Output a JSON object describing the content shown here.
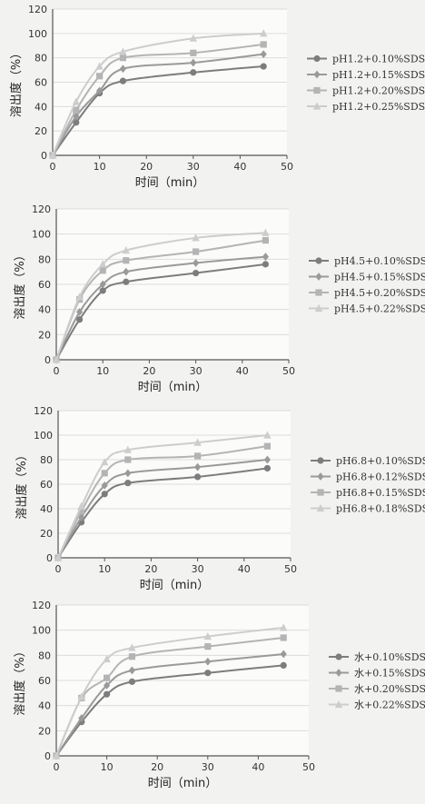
{
  "colors": {
    "series1": "#7d7d7d",
    "series2": "#9a9a9a",
    "series3": "#b4b4b4",
    "series4": "#cdcdcd",
    "axis": "#555555",
    "grid": "#dcdcdc",
    "panel_bg": "#fbfbfa",
    "page_bg": "#f2f2f0"
  },
  "chart_data": [
    {
      "type": "line",
      "xlabel": "时间（min）",
      "ylabel": "溶出度（%）",
      "xlim": [
        0,
        50
      ],
      "ylim": [
        0,
        120
      ],
      "xticks": [
        "0",
        "10",
        "20",
        "30",
        "40",
        "50"
      ],
      "yticks": [
        "0",
        "20",
        "40",
        "60",
        "80",
        "100",
        "120"
      ],
      "grid": true,
      "legend": "right",
      "x": [
        0,
        5,
        10,
        15,
        30,
        45
      ],
      "series": [
        {
          "name": "pH1.2+0.10%SDS",
          "marker": "circle",
          "values": [
            0,
            27,
            51,
            61,
            68,
            73
          ]
        },
        {
          "name": "pH1.2+0.15%SDS",
          "marker": "diamond",
          "values": [
            0,
            32,
            53,
            71,
            76,
            83
          ]
        },
        {
          "name": "pH1.2+0.20%SDS",
          "marker": "square",
          "values": [
            0,
            37,
            65,
            80,
            84,
            91
          ]
        },
        {
          "name": "pH1.2+0.25%SDS",
          "marker": "triangle",
          "values": [
            0,
            44,
            73,
            85,
            96,
            100
          ]
        }
      ]
    },
    {
      "type": "line",
      "xlabel": "时间（min）",
      "ylabel": "溶出度（%）",
      "xlim": [
        0,
        50
      ],
      "ylim": [
        0,
        120
      ],
      "xticks": [
        "0",
        "10",
        "20",
        "30",
        "40",
        "50"
      ],
      "yticks": [
        "0",
        "20",
        "40",
        "60",
        "80",
        "100",
        "120"
      ],
      "grid": true,
      "legend": "right",
      "x": [
        0,
        5,
        10,
        15,
        30,
        45
      ],
      "series": [
        {
          "name": "pH4.5+0.10%SDS",
          "marker": "circle",
          "values": [
            0,
            32,
            55,
            62,
            69,
            76
          ]
        },
        {
          "name": "pH4.5+0.15%SDS",
          "marker": "diamond",
          "values": [
            0,
            38,
            60,
            70,
            77,
            82
          ]
        },
        {
          "name": "pH4.5+0.20%SDS",
          "marker": "square",
          "values": [
            0,
            48,
            71,
            79,
            86,
            95
          ]
        },
        {
          "name": "pH4.5+0.22%SDS",
          "marker": "triangle",
          "values": [
            0,
            50,
            76,
            87,
            97,
            101
          ]
        }
      ]
    },
    {
      "type": "line",
      "xlabel": "时间（min）",
      "ylabel": "溶出度（%）",
      "xlim": [
        0,
        50
      ],
      "ylim": [
        0,
        120
      ],
      "xticks": [
        "0",
        "10",
        "20",
        "30",
        "40",
        "50"
      ],
      "yticks": [
        "0",
        "20",
        "40",
        "60",
        "80",
        "100",
        "120"
      ],
      "grid": true,
      "legend": "right",
      "x": [
        0,
        5,
        10,
        15,
        30,
        45
      ],
      "series": [
        {
          "name": "pH6.8+0.10%SDS",
          "marker": "circle",
          "values": [
            0,
            29,
            52,
            61,
            66,
            73
          ]
        },
        {
          "name": "pH6.8+0.12%SDS",
          "marker": "diamond",
          "values": [
            0,
            33,
            59,
            69,
            74,
            80
          ]
        },
        {
          "name": "pH6.8+0.15%SDS",
          "marker": "square",
          "values": [
            0,
            38,
            69,
            80,
            83,
            91
          ]
        },
        {
          "name": "pH6.8+0.18%SDS",
          "marker": "triangle",
          "values": [
            0,
            42,
            78,
            88,
            94,
            100
          ]
        }
      ]
    },
    {
      "type": "line",
      "xlabel": "时间（min）",
      "ylabel": "溶出度（%）",
      "xlim": [
        0,
        50
      ],
      "ylim": [
        0,
        120
      ],
      "xticks": [
        "0",
        "10",
        "20",
        "30",
        "40",
        "50"
      ],
      "yticks": [
        "0",
        "20",
        "40",
        "60",
        "80",
        "100",
        "120"
      ],
      "grid": true,
      "legend": "right",
      "x": [
        0,
        5,
        10,
        15,
        30,
        45
      ],
      "series": [
        {
          "name": "水+0.10%SDS",
          "marker": "circle",
          "values": [
            0,
            27,
            49,
            59,
            66,
            72
          ]
        },
        {
          "name": "水+0.15%SDS",
          "marker": "diamond",
          "values": [
            0,
            30,
            56,
            68,
            75,
            81
          ]
        },
        {
          "name": "水+0.20%SDS",
          "marker": "square",
          "values": [
            0,
            46,
            62,
            79,
            87,
            94
          ]
        },
        {
          "name": "水+0.22%SDS",
          "marker": "triangle",
          "values": [
            0,
            47,
            77,
            86,
            95,
            102
          ]
        }
      ]
    }
  ]
}
